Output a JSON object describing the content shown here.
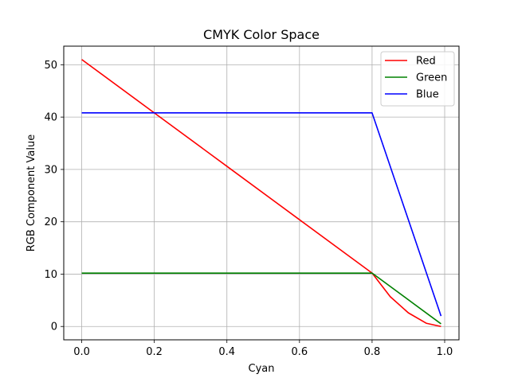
{
  "chart_data": {
    "type": "line",
    "title": "CMYK Color Space",
    "xlabel": "Cyan",
    "ylabel": "RGB Component Value",
    "xlim": [
      -0.0495,
      1.0395
    ],
    "ylim": [
      -2.55,
      53.55
    ],
    "xticks": [
      0.0,
      0.2,
      0.4,
      0.6,
      0.8,
      1.0
    ],
    "xtick_labels": [
      "0.0",
      "0.2",
      "0.4",
      "0.6",
      "0.8",
      "1.0"
    ],
    "yticks": [
      0,
      10,
      20,
      30,
      40,
      50
    ],
    "ytick_labels": [
      "0",
      "10",
      "20",
      "30",
      "40",
      "50"
    ],
    "grid": true,
    "legend_position": "top-right",
    "series": [
      {
        "name": "Red",
        "color": "#ff0000",
        "x": [
          0.0,
          0.2,
          0.4,
          0.6,
          0.8,
          0.85,
          0.9,
          0.95,
          0.99
        ],
        "y": [
          51.0,
          40.8,
          30.6,
          20.4,
          10.2,
          5.7,
          2.6,
          0.6,
          0.0
        ]
      },
      {
        "name": "Green",
        "color": "#008000",
        "x": [
          0.0,
          0.2,
          0.4,
          0.6,
          0.8,
          0.99
        ],
        "y": [
          10.2,
          10.2,
          10.2,
          10.2,
          10.2,
          0.5
        ]
      },
      {
        "name": "Blue",
        "color": "#0000ff",
        "x": [
          0.0,
          0.2,
          0.4,
          0.6,
          0.8,
          0.99
        ],
        "y": [
          40.8,
          40.8,
          40.8,
          40.8,
          40.8,
          2.0
        ]
      }
    ]
  }
}
